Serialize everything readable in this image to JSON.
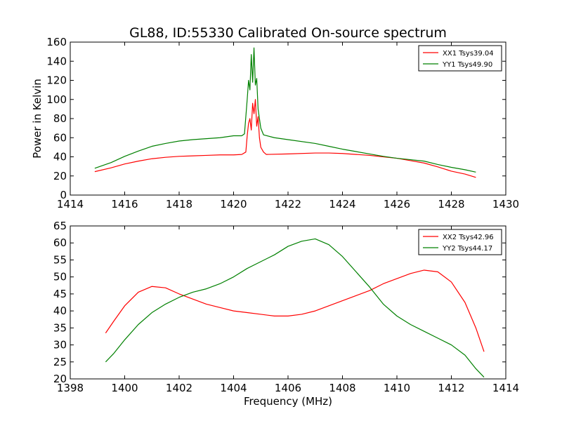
{
  "figure": {
    "title": "GL88, ID:55330 Calibrated On-source spectrum",
    "colors": {
      "red": "#ff0000",
      "green": "#008000"
    }
  },
  "chart_data": [
    {
      "type": "line",
      "title": "GL88, ID:55330 Calibrated On-source spectrum",
      "xlabel": "",
      "ylabel": "Power in Kelvin",
      "xlim": [
        1414,
        1430
      ],
      "ylim": [
        0,
        160
      ],
      "xticks": [
        "1414",
        "1416",
        "1418",
        "1420",
        "1422",
        "1424",
        "1426",
        "1428",
        "1430"
      ],
      "yticks": [
        "0",
        "20",
        "40",
        "60",
        "80",
        "100",
        "120",
        "140",
        "160"
      ],
      "legend_position": "top-right",
      "series": [
        {
          "name": "XX1 Tsys39.04",
          "color": "#ff0000",
          "points": [
            [
              1414.9,
              24.5
            ],
            [
              1415.5,
              28.5
            ],
            [
              1416,
              32.5
            ],
            [
              1416.5,
              35.5
            ],
            [
              1417,
              38
            ],
            [
              1417.5,
              39.5
            ],
            [
              1418,
              40.5
            ],
            [
              1418.5,
              41
            ],
            [
              1419,
              41.5
            ],
            [
              1419.5,
              42
            ],
            [
              1420,
              42
            ],
            [
              1420.3,
              42.5
            ],
            [
              1420.45,
              45
            ],
            [
              1420.5,
              62
            ],
            [
              1420.55,
              75
            ],
            [
              1420.6,
              80
            ],
            [
              1420.65,
              68
            ],
            [
              1420.7,
              96
            ],
            [
              1420.75,
              85
            ],
            [
              1420.8,
              100
            ],
            [
              1420.85,
              72
            ],
            [
              1420.9,
              82
            ],
            [
              1420.95,
              60
            ],
            [
              1421.0,
              50
            ],
            [
              1421.1,
              45
            ],
            [
              1421.2,
              42.5
            ],
            [
              1422,
              43
            ],
            [
              1423,
              44
            ],
            [
              1423.5,
              44
            ],
            [
              1424,
              43.5
            ],
            [
              1424.5,
              42.5
            ],
            [
              1425,
              41.5
            ],
            [
              1425.5,
              40
            ],
            [
              1426,
              38.5
            ],
            [
              1426.5,
              36
            ],
            [
              1427,
              33.5
            ],
            [
              1427.5,
              29.5
            ],
            [
              1428,
              25
            ],
            [
              1428.5,
              22
            ],
            [
              1428.9,
              18.5
            ]
          ]
        },
        {
          "name": "YY1 Tsys49.90",
          "color": "#008000",
          "points": [
            [
              1414.9,
              28
            ],
            [
              1415.5,
              34
            ],
            [
              1416,
              40.5
            ],
            [
              1416.5,
              46
            ],
            [
              1417,
              51
            ],
            [
              1417.5,
              54
            ],
            [
              1418,
              56.5
            ],
            [
              1418.5,
              58
            ],
            [
              1419,
              59
            ],
            [
              1419.5,
              60
            ],
            [
              1420,
              62
            ],
            [
              1420.3,
              62
            ],
            [
              1420.4,
              64
            ],
            [
              1420.5,
              100
            ],
            [
              1420.55,
              120
            ],
            [
              1420.6,
              110
            ],
            [
              1420.65,
              147
            ],
            [
              1420.7,
              118
            ],
            [
              1420.75,
              154
            ],
            [
              1420.8,
              115
            ],
            [
              1420.85,
              122
            ],
            [
              1420.9,
              90
            ],
            [
              1421.0,
              70
            ],
            [
              1421.1,
              63
            ],
            [
              1421.5,
              60
            ],
            [
              1422,
              58
            ],
            [
              1423,
              54
            ],
            [
              1423.5,
              51
            ],
            [
              1424,
              48
            ],
            [
              1424.5,
              45.5
            ],
            [
              1425,
              43
            ],
            [
              1425.5,
              40.5
            ],
            [
              1426,
              38.5
            ],
            [
              1426.5,
              37
            ],
            [
              1427,
              35.5
            ],
            [
              1427.5,
              32
            ],
            [
              1428,
              29
            ],
            [
              1428.5,
              26.5
            ],
            [
              1428.9,
              24
            ]
          ]
        }
      ]
    },
    {
      "type": "line",
      "title": "",
      "xlabel": "Frequency (MHz)",
      "ylabel": "",
      "xlim": [
        1398,
        1414
      ],
      "ylim": [
        20,
        65
      ],
      "xticks": [
        "1398",
        "1400",
        "1402",
        "1404",
        "1406",
        "1408",
        "1410",
        "1412",
        "1414"
      ],
      "yticks": [
        "20",
        "25",
        "30",
        "35",
        "40",
        "45",
        "50",
        "55",
        "60",
        "65"
      ],
      "legend_position": "top-right",
      "series": [
        {
          "name": "XX2 Tsys42.96",
          "color": "#ff0000",
          "points": [
            [
              1399.3,
              33.5
            ],
            [
              1399.6,
              37
            ],
            [
              1400,
              41.5
            ],
            [
              1400.5,
              45.5
            ],
            [
              1401,
              47.2
            ],
            [
              1401.5,
              46.8
            ],
            [
              1402,
              45
            ],
            [
              1402.5,
              43.5
            ],
            [
              1403,
              42
            ],
            [
              1403.5,
              41
            ],
            [
              1404,
              40
            ],
            [
              1404.5,
              39.5
            ],
            [
              1405,
              39
            ],
            [
              1405.5,
              38.5
            ],
            [
              1406,
              38.5
            ],
            [
              1406.5,
              39
            ],
            [
              1407,
              40
            ],
            [
              1407.5,
              41.5
            ],
            [
              1408,
              43
            ],
            [
              1408.5,
              44.5
            ],
            [
              1409,
              46
            ],
            [
              1409.5,
              48
            ],
            [
              1410,
              49.5
            ],
            [
              1410.5,
              51
            ],
            [
              1411,
              52
            ],
            [
              1411.5,
              51.5
            ],
            [
              1412,
              48.5
            ],
            [
              1412.5,
              42.5
            ],
            [
              1412.9,
              35
            ],
            [
              1413.2,
              28
            ]
          ]
        },
        {
          "name": "YY2 Tsys44.17",
          "color": "#008000",
          "points": [
            [
              1399.3,
              25
            ],
            [
              1399.6,
              27.5
            ],
            [
              1400,
              31.5
            ],
            [
              1400.5,
              36
            ],
            [
              1401,
              39.5
            ],
            [
              1401.5,
              42
            ],
            [
              1402,
              44
            ],
            [
              1402.5,
              45.5
            ],
            [
              1403,
              46.5
            ],
            [
              1403.5,
              48
            ],
            [
              1404,
              50
            ],
            [
              1404.5,
              52.5
            ],
            [
              1405,
              54.5
            ],
            [
              1405.5,
              56.5
            ],
            [
              1406,
              59
            ],
            [
              1406.5,
              60.5
            ],
            [
              1407,
              61.2
            ],
            [
              1407.5,
              59.5
            ],
            [
              1408,
              56
            ],
            [
              1408.5,
              51.5
            ],
            [
              1409,
              47
            ],
            [
              1409.5,
              42
            ],
            [
              1410,
              38.5
            ],
            [
              1410.5,
              36
            ],
            [
              1411,
              34
            ],
            [
              1411.5,
              32
            ],
            [
              1412,
              30
            ],
            [
              1412.5,
              27
            ],
            [
              1412.9,
              23
            ],
            [
              1413.2,
              20.5
            ]
          ]
        }
      ]
    }
  ]
}
